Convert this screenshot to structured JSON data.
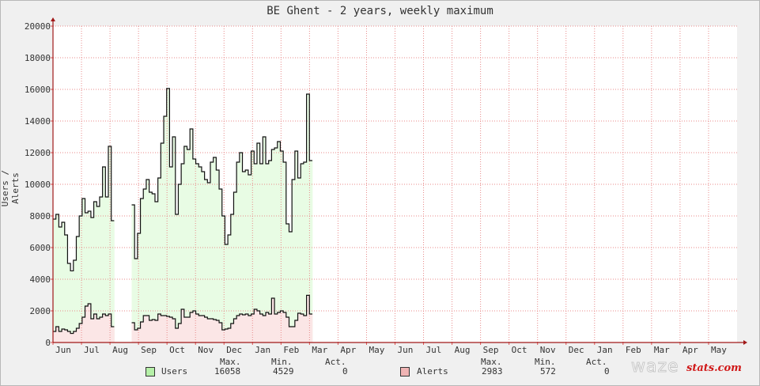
{
  "chart_data": {
    "type": "area",
    "title": "BE Ghent - 2 years, weekly maximum",
    "ylabel": "Users / Alerts",
    "ylim": [
      0,
      20000
    ],
    "yticks": [
      "0",
      "2000",
      "4000",
      "6000",
      "8000",
      "10000",
      "12000",
      "14000",
      "16000",
      "18000",
      "20000"
    ],
    "xticks": [
      "Jun",
      "Jul",
      "Aug",
      "Sep",
      "Oct",
      "Nov",
      "Dec",
      "Jan",
      "Feb",
      "Mar",
      "Apr",
      "May",
      "Jun",
      "Jul",
      "Aug",
      "Sep",
      "Oct",
      "Nov",
      "Dec",
      "Jan",
      "Feb",
      "Mar",
      "Apr",
      "May"
    ],
    "grid": true,
    "legend_position": "bottom",
    "series": [
      {
        "name": "Users",
        "color": "#b6f0a8",
        "fill": "#e8fce4",
        "values": [
          7800,
          8100,
          7300,
          7600,
          6800,
          5000,
          4529,
          5200,
          6700,
          8000,
          9100,
          8200,
          8300,
          7900,
          8900,
          8600,
          9200,
          11100,
          9200,
          12400,
          7700,
          null,
          null,
          null,
          null,
          null,
          null,
          8700,
          5300,
          6900,
          9100,
          9700,
          10300,
          9500,
          9400,
          8900,
          10400,
          12600,
          14300,
          16058,
          11100,
          13000,
          8100,
          10000,
          11300,
          12400,
          12200,
          13500,
          11600,
          11300,
          11100,
          10800,
          10300,
          10100,
          11400,
          11700,
          10900,
          9700,
          8000,
          6200,
          6800,
          8100,
          9500,
          11400,
          12000,
          10800,
          10900,
          10600,
          12100,
          11300,
          12600,
          11300,
          13000,
          11300,
          11500,
          12200,
          12300,
          12700,
          12100,
          11400,
          7500,
          7000,
          10300,
          12100,
          10400,
          11300,
          11400,
          15700,
          11500
        ],
        "max": "16058",
        "min": "4529",
        "act": "0"
      },
      {
        "name": "Alerts",
        "color": "#f0b4b4",
        "fill": "#fbe6e6",
        "values": [
          700,
          1000,
          700,
          850,
          800,
          700,
          572,
          700,
          900,
          1200,
          1600,
          2300,
          2450,
          1500,
          1800,
          1500,
          1600,
          1800,
          1700,
          1800,
          1000,
          null,
          null,
          null,
          null,
          null,
          null,
          1250,
          800,
          900,
          1300,
          1700,
          1700,
          1400,
          1450,
          1400,
          1800,
          1700,
          1700,
          1650,
          1600,
          1500,
          900,
          1200,
          2100,
          1600,
          1600,
          1900,
          2000,
          1800,
          1700,
          1700,
          1600,
          1500,
          1500,
          1450,
          1400,
          1250,
          800,
          850,
          900,
          1200,
          1500,
          1700,
          1800,
          1750,
          1800,
          1700,
          1800,
          2100,
          2000,
          1800,
          1700,
          1900,
          1800,
          2800,
          1800,
          1900,
          2000,
          1900,
          1600,
          1000,
          1000,
          1400,
          1850,
          1800,
          1700,
          2983,
          1800
        ],
        "max": "2983",
        "min": "572",
        "act": "0"
      }
    ]
  },
  "legend": {
    "max_label": "Max.",
    "min_label": "Min.",
    "act_label": "Act."
  },
  "logo": {
    "word": "waze",
    "suffix": "stats.com"
  }
}
